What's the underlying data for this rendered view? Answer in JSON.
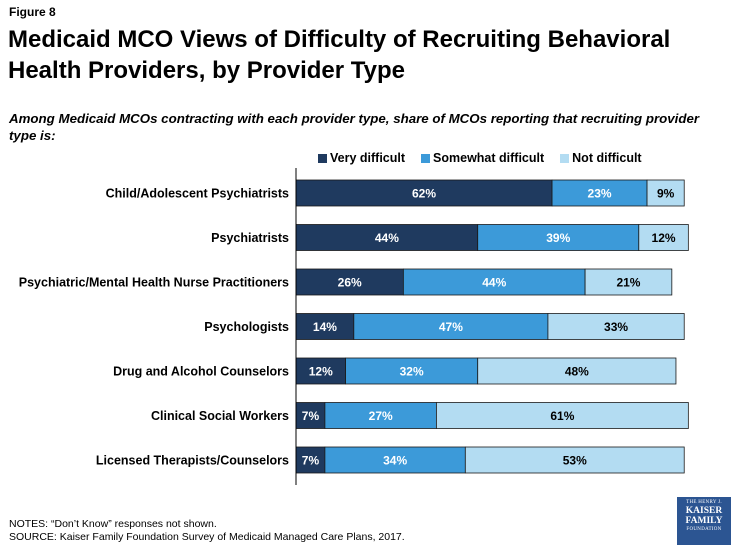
{
  "figure_label": "Figure 8",
  "title": "Medicaid MCO Views of Difficulty of Recruiting Behavioral Health Providers, by Provider Type",
  "subtitle": "Among Medicaid MCOs contracting with each provider type, share of MCOs reporting that recruiting provider type is:",
  "notes": {
    "line1": "NOTES: “Don’t Know” responses not shown.",
    "line2": "SOURCE: Kaiser Family Foundation Survey of Medicaid Managed Care Plans, 2017."
  },
  "logo": {
    "line1": "THE HENRY J.",
    "line2": "KAISER",
    "line3": "FAMILY",
    "line4": "FOUNDATION"
  },
  "chart_data": {
    "type": "bar",
    "orientation": "horizontal",
    "stacked": true,
    "categories": [
      "Child/Adolescent Psychiatrists",
      "Psychiatrists",
      "Psychiatric/Mental Health Nurse Practitioners",
      "Psychologists",
      "Drug and Alcohol Counselors",
      "Clinical Social Workers",
      "Licensed Therapists/Counselors"
    ],
    "series": [
      {
        "name": "Very difficult",
        "color": "#1f3a5f",
        "values": [
          62,
          44,
          26,
          14,
          12,
          7,
          7
        ]
      },
      {
        "name": "Somewhat difficult",
        "color": "#3c9ad9",
        "values": [
          23,
          39,
          44,
          47,
          32,
          27,
          34
        ]
      },
      {
        "name": "Not difficult",
        "color": "#b3dcf2",
        "values": [
          9,
          12,
          21,
          33,
          48,
          61,
          53
        ]
      }
    ],
    "value_suffix": "%",
    "legend_position": "top",
    "xlim": [
      0,
      100
    ],
    "grid": false
  }
}
